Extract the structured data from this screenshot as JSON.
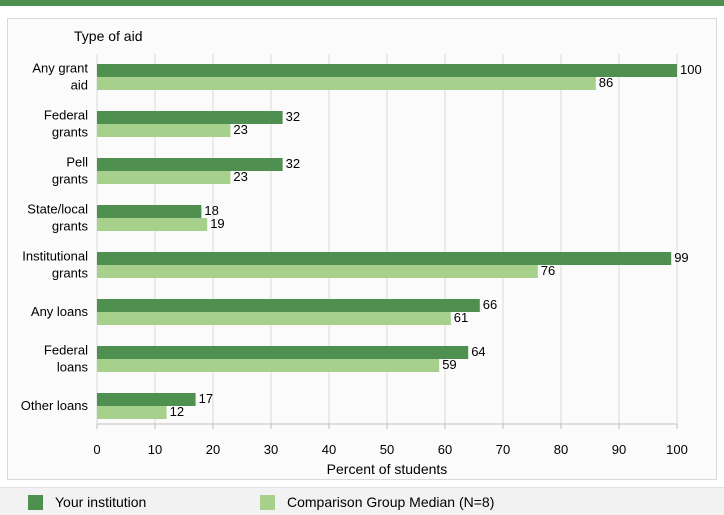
{
  "colors": {
    "your_institution": "#4f8f4f",
    "comparison": "#a8d08d",
    "grid": "#d9d9d9",
    "header_rule": "#4f8f4f"
  },
  "chart_data": {
    "type": "bar",
    "orientation": "horizontal",
    "title": "",
    "ylabel": "Type of aid",
    "xlabel": "Percent of students",
    "xlim": [
      0,
      100
    ],
    "xticks": [
      0,
      10,
      20,
      30,
      40,
      50,
      60,
      70,
      80,
      90,
      100
    ],
    "grid": true,
    "legend_position": "bottom",
    "categories": [
      [
        "Any grant",
        "aid"
      ],
      [
        "Federal",
        "grants"
      ],
      [
        "Pell",
        "grants"
      ],
      [
        "State/local",
        "grants"
      ],
      [
        "Institutional",
        "grants"
      ],
      [
        "Any loans"
      ],
      [
        "Federal",
        "loans"
      ],
      [
        "Other loans"
      ]
    ],
    "series": [
      {
        "name": "Your institution",
        "values": [
          100,
          32,
          32,
          18,
          99,
          66,
          64,
          17
        ]
      },
      {
        "name": "Comparison Group Median (N=8)",
        "values": [
          86,
          23,
          23,
          19,
          76,
          61,
          59,
          12
        ]
      }
    ]
  },
  "legend": {
    "items": [
      "Your institution",
      "Comparison Group Median (N=8)"
    ]
  }
}
